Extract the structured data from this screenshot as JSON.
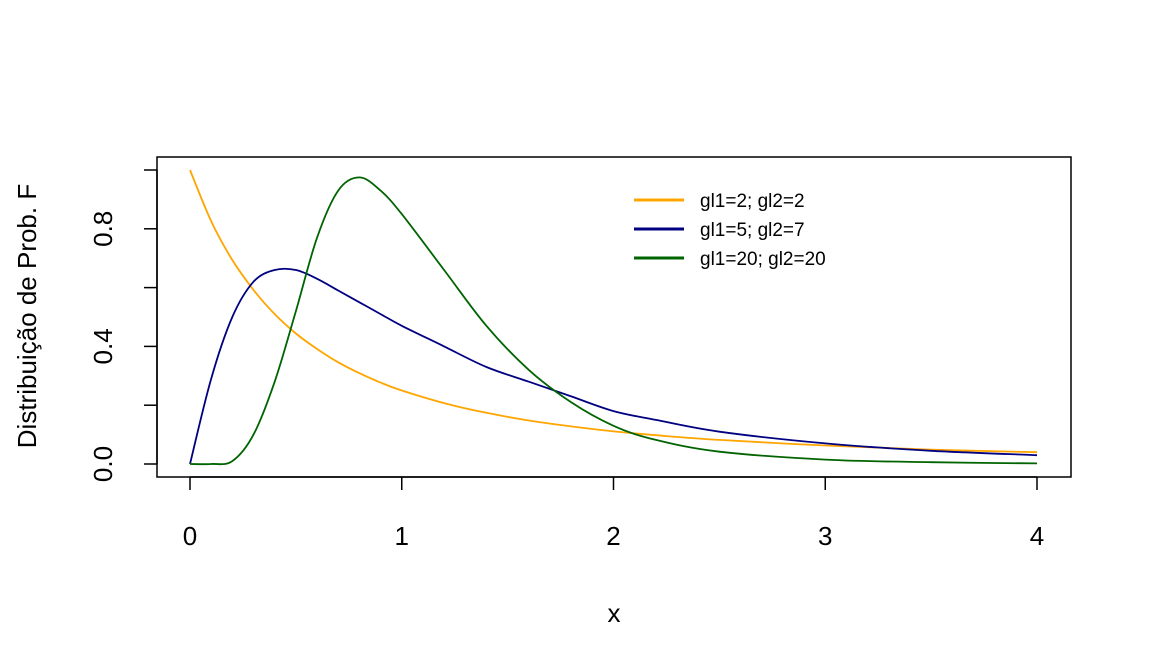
{
  "chart_data": {
    "type": "line",
    "title": "",
    "xlabel": "x",
    "ylabel": "Distribuição de Prob. F",
    "xlim": [
      0,
      4
    ],
    "ylim": [
      0,
      1
    ],
    "x_ticks": [
      "0",
      "1",
      "2",
      "3",
      "4"
    ],
    "y_ticks": [
      "0.0",
      "0.4",
      "0.8"
    ],
    "grid": false,
    "legend_position": "top-right",
    "x": [
      0,
      0.1,
      0.2,
      0.3,
      0.4,
      0.5,
      0.6,
      0.7,
      0.8,
      0.9,
      1.0,
      1.2,
      1.4,
      1.6,
      1.8,
      2.0,
      2.2,
      2.5,
      3.0,
      3.5,
      4.0
    ],
    "series": [
      {
        "name": "gl1=2; gl2=2",
        "color": "#FFA500",
        "values": [
          1.0,
          0.826,
          0.694,
          0.592,
          0.51,
          0.444,
          0.391,
          0.346,
          0.309,
          0.277,
          0.25,
          0.207,
          0.174,
          0.148,
          0.128,
          0.111,
          0.098,
          0.082,
          0.063,
          0.049,
          0.04
        ]
      },
      {
        "name": "gl1=5; gl2=7",
        "color": "#000080",
        "values": [
          0.0,
          0.29,
          0.5,
          0.62,
          0.66,
          0.66,
          0.63,
          0.59,
          0.55,
          0.51,
          0.47,
          0.4,
          0.33,
          0.28,
          0.23,
          0.18,
          0.15,
          0.11,
          0.07,
          0.045,
          0.03
        ]
      },
      {
        "name": "gl1=20; gl2=20",
        "color": "#006400",
        "values": [
          0.0,
          0.0,
          0.01,
          0.1,
          0.28,
          0.52,
          0.77,
          0.93,
          0.975,
          0.93,
          0.85,
          0.66,
          0.47,
          0.32,
          0.21,
          0.13,
          0.082,
          0.042,
          0.015,
          0.006,
          0.002
        ]
      }
    ]
  }
}
